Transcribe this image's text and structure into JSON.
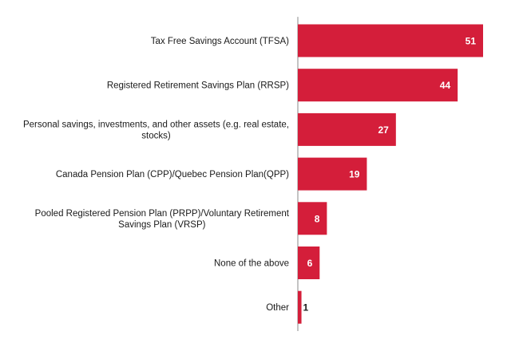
{
  "chart_data": {
    "type": "bar",
    "orientation": "horizontal",
    "categories": [
      "Tax Free Savings Account (TFSA)",
      "Registered Retirement Savings Plan (RRSP)",
      "Personal savings, investments, and other assets (e.g. real estate, stocks)",
      "Canada Pension Plan (CPP)/Quebec Pension Plan(QPP)",
      "Pooled Registered Pension Plan (PRPP)/Voluntary Retirement Savings Plan (VRSP)",
      "None of the above",
      "Other"
    ],
    "category_lines": [
      [
        "Tax Free Savings Account (TFSA)"
      ],
      [
        "Registered Retirement Savings Plan (RRSP)"
      ],
      [
        "Personal savings, investments, and other assets (e.g. real estate,",
        "stocks)"
      ],
      [
        "Canada Pension Plan (CPP)/Quebec Pension Plan(QPP)"
      ],
      [
        "Pooled Registered Pension Plan (PRPP)/Voluntary Retirement",
        "Savings Plan (VRSP)"
      ],
      [
        "None of the above"
      ],
      [
        "Other"
      ]
    ],
    "values": [
      51,
      44,
      27,
      19,
      8,
      6,
      1
    ],
    "data_labels": [
      "51",
      "44",
      "27",
      "19",
      "8",
      "6",
      "1"
    ],
    "bar_color": "#d41e3a",
    "label_color": "#ffffff",
    "axis_color": "#8a8a8a",
    "text_color": "#1a1a1a",
    "xlim": [
      0,
      51
    ],
    "grid": false,
    "legend": "none"
  }
}
